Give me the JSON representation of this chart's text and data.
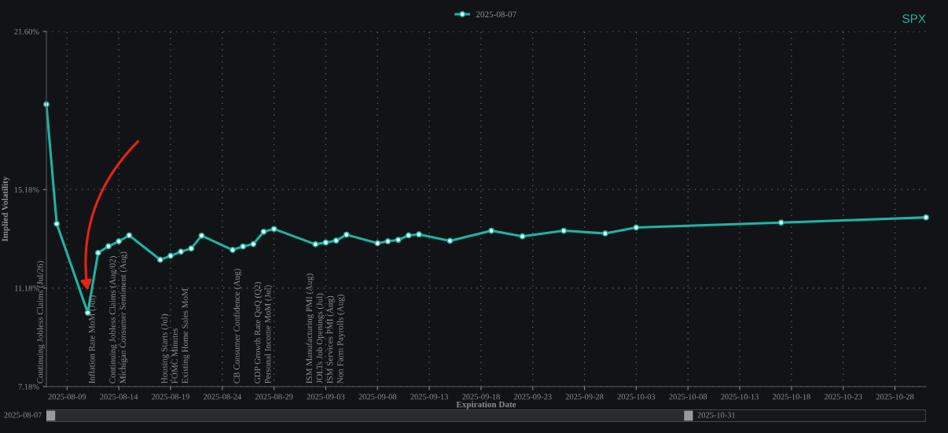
{
  "chart_data": {
    "type": "line",
    "title": "SPX",
    "xlabel": "Expiration Date",
    "ylabel": "Implied Volatility",
    "x": [
      "2025-08-07",
      "2025-08-08",
      "2025-08-11",
      "2025-08-12",
      "2025-08-13",
      "2025-08-14",
      "2025-08-15",
      "2025-08-18",
      "2025-08-19",
      "2025-08-20",
      "2025-08-21",
      "2025-08-22",
      "2025-08-25",
      "2025-08-26",
      "2025-08-27",
      "2025-08-28",
      "2025-08-29",
      "2025-09-02",
      "2025-09-03",
      "2025-09-04",
      "2025-09-05",
      "2025-09-08",
      "2025-09-09",
      "2025-09-10",
      "2025-09-11",
      "2025-09-12",
      "2025-09-15",
      "2025-09-19",
      "2025-09-22",
      "2025-09-26",
      "2025-09-30",
      "2025-10-03",
      "2025-10-17",
      "2025-10-31"
    ],
    "series": [
      {
        "name": "2025-08-07",
        "color": "#1cb5a3",
        "values": [
          18.64,
          13.79,
          10.18,
          12.61,
          12.88,
          13.08,
          13.32,
          12.33,
          12.49,
          12.66,
          12.79,
          13.31,
          12.73,
          12.87,
          12.97,
          13.47,
          13.58,
          12.96,
          13.03,
          13.11,
          13.35,
          13.0,
          13.08,
          13.14,
          13.32,
          13.36,
          13.1,
          13.51,
          13.28,
          13.51,
          13.4,
          13.64,
          13.84,
          14.05
        ]
      }
    ],
    "xlim": [
      "2025-08-07",
      "2025-10-31"
    ],
    "xticks": [
      "2025-08-09",
      "2025-08-14",
      "2025-08-19",
      "2025-08-24",
      "2025-08-29",
      "2025-09-03",
      "2025-09-08",
      "2025-09-13",
      "2025-09-18",
      "2025-09-23",
      "2025-09-28",
      "2025-10-03",
      "2025-10-08",
      "2025-10-13",
      "2025-10-18",
      "2025-10-23",
      "2025-10-28"
    ],
    "ylim": [
      7.18,
      21.6
    ],
    "yticks": [
      {
        "value": 7.18,
        "label": "7.18%"
      },
      {
        "value": 11.18,
        "label": "11.18%"
      },
      {
        "value": 15.18,
        "label": "15.18%"
      },
      {
        "value": 21.6,
        "label": "21.60%"
      }
    ],
    "grid": true,
    "legend": "top",
    "marker": "circle",
    "line_style": "solid",
    "annotations": [
      "Continuing Jobless Claims (Jul/26)",
      "Inflation Rate MoM (Jul)",
      "Continuing Jobless Claims (Aug/02)",
      "Michigan Consumer Sentiment (Aug)",
      "Housing Starts (Jul)",
      "FOMC Minutes",
      "Existing Home Sales MoM",
      "CB Consumer Confidence (Aug)",
      "GDP Growth Rate QoQ (Q2)",
      "Personal Income MoM (Jul)",
      "ISM Manufacturing PMI (Aug)",
      "JOLTs Job Openings (Jul)",
      "ISM Services PMI (Aug)",
      "Non Farm Payrolls (Aug)",
      "2025-08-07",
      "2025-10-31"
    ]
  }
}
